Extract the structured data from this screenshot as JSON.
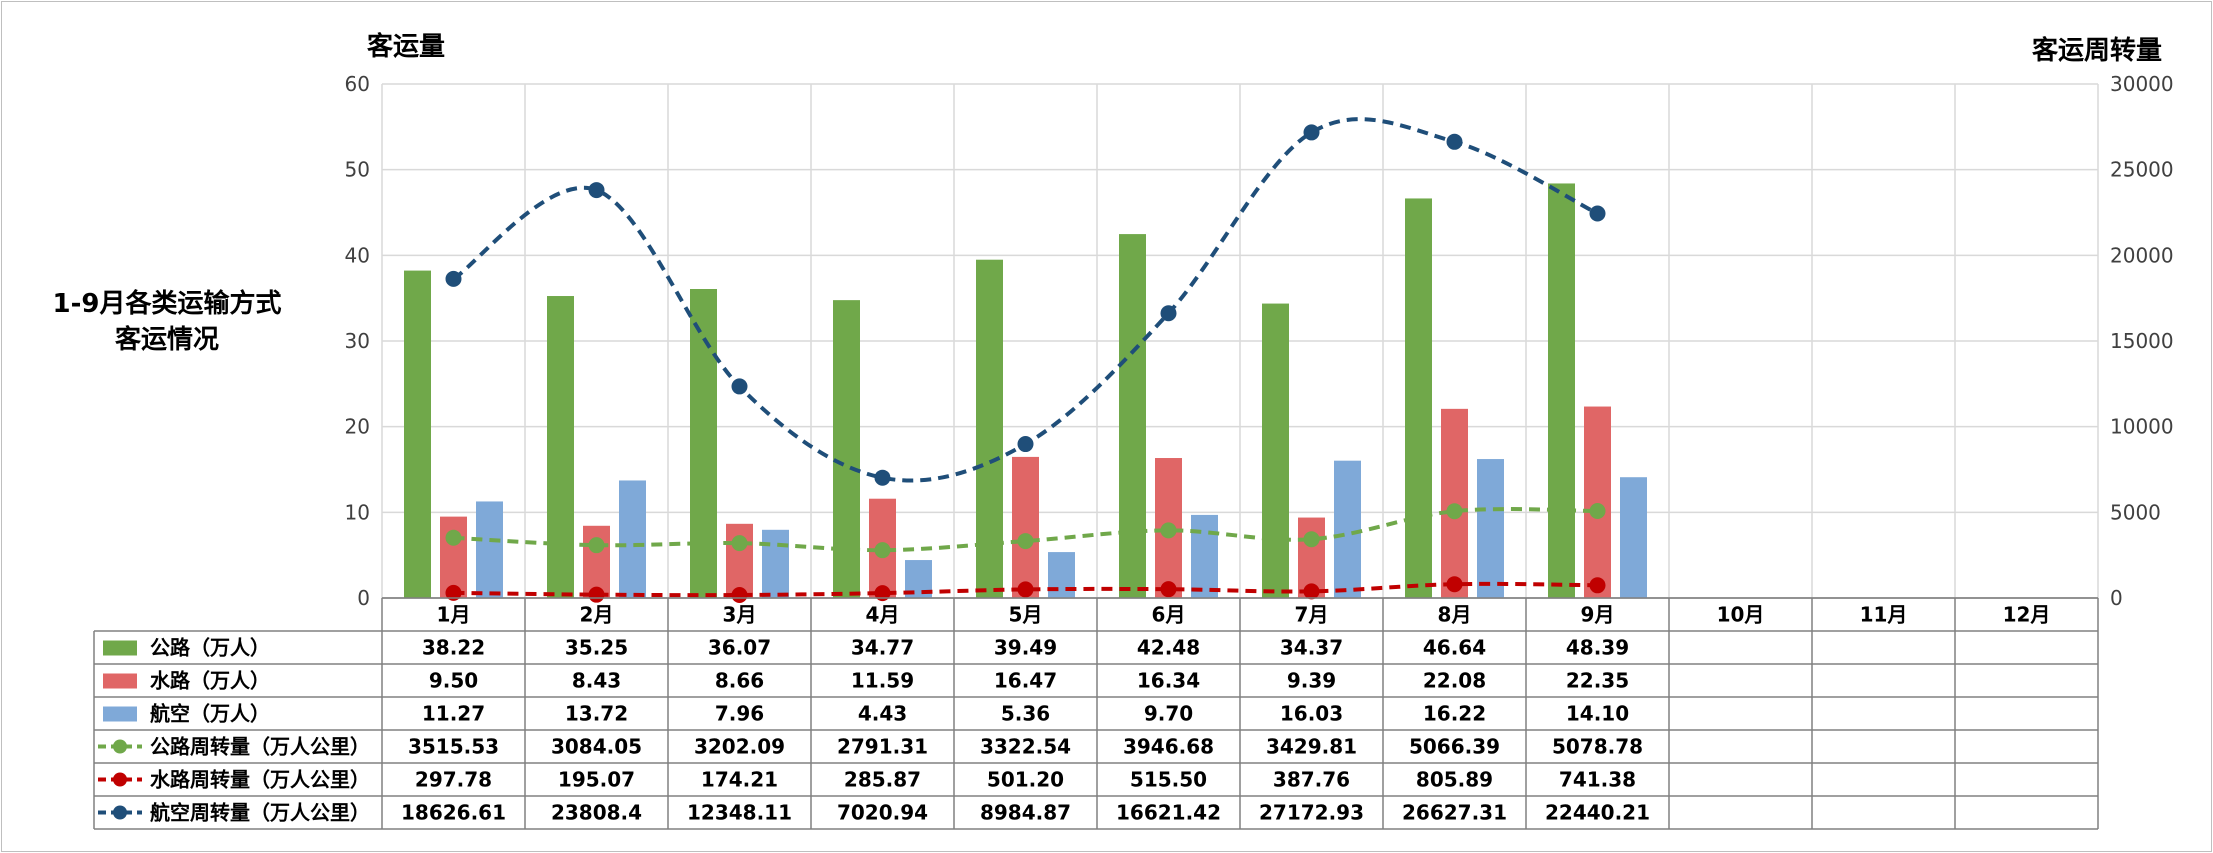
{
  "side_title": [
    "1-9月各类运输方式",
    "客运情况"
  ],
  "chart_data": {
    "type": "bar",
    "title": "",
    "ylabel": "客运量",
    "y2label": "客运周转量",
    "ylim": [
      0,
      60
    ],
    "y2lim": [
      0,
      30000
    ],
    "yticks": [
      0,
      10,
      20,
      30,
      40,
      50,
      60
    ],
    "y2ticks": [
      0,
      5000,
      10000,
      15000,
      20000,
      25000,
      30000
    ],
    "grid": true,
    "legend": "data-table",
    "categories": [
      "1月",
      "2月",
      "3月",
      "4月",
      "5月",
      "6月",
      "7月",
      "8月",
      "9月",
      "10月",
      "11月",
      "12月"
    ],
    "series": [
      {
        "name": "公路（万人）",
        "type": "bar",
        "axis": "left",
        "color": "#70a84a",
        "values": [
          38.22,
          35.25,
          36.07,
          34.77,
          39.49,
          42.48,
          34.37,
          46.64,
          48.39,
          null,
          null,
          null
        ],
        "labels": [
          "38.22",
          "35.25",
          "36.07",
          "34.77",
          "39.49",
          "42.48",
          "34.37",
          "46.64",
          "48.39",
          "",
          "",
          ""
        ]
      },
      {
        "name": "水路（万人）",
        "type": "bar",
        "axis": "left",
        "color": "#e06666",
        "values": [
          9.5,
          8.43,
          8.66,
          11.59,
          16.47,
          16.34,
          9.39,
          22.08,
          22.35,
          null,
          null,
          null
        ],
        "labels": [
          "9.50",
          "8.43",
          "8.66",
          "11.59",
          "16.47",
          "16.34",
          "9.39",
          "22.08",
          "22.35",
          "",
          "",
          ""
        ]
      },
      {
        "name": "航空（万人）",
        "type": "bar",
        "axis": "left",
        "color": "#7fa9d8",
        "values": [
          11.27,
          13.72,
          7.96,
          4.43,
          5.36,
          9.7,
          16.03,
          16.22,
          14.1,
          null,
          null,
          null
        ],
        "labels": [
          "11.27",
          "13.72",
          "7.96",
          "4.43",
          "5.36",
          "9.70",
          "16.03",
          "16.22",
          "14.10",
          "",
          "",
          ""
        ]
      },
      {
        "name": "公路周转量（万人公里）",
        "type": "line",
        "axis": "right",
        "color": "#70a84a",
        "values": [
          3515.53,
          3084.05,
          3202.09,
          2791.31,
          3322.54,
          3946.68,
          3429.81,
          5066.39,
          5078.78,
          null,
          null,
          null
        ],
        "labels": [
          "3515.53",
          "3084.05",
          "3202.09",
          "2791.31",
          "3322.54",
          "3946.68",
          "3429.81",
          "5066.39",
          "5078.78",
          "",
          "",
          ""
        ]
      },
      {
        "name": "水路周转量（万人公里）",
        "type": "line",
        "axis": "right",
        "color": "#c00000",
        "values": [
          297.78,
          195.07,
          174.21,
          285.87,
          501.2,
          515.5,
          387.76,
          805.89,
          741.38,
          null,
          null,
          null
        ],
        "labels": [
          "297.78",
          "195.07",
          "174.21",
          "285.87",
          "501.20",
          "515.50",
          "387.76",
          "805.89",
          "741.38",
          "",
          "",
          ""
        ]
      },
      {
        "name": "航空周转量（万人公里）",
        "type": "line",
        "axis": "right",
        "color": "#1f4e79",
        "values": [
          18626.61,
          23808.4,
          12348.11,
          7020.94,
          8984.87,
          16621.42,
          27172.93,
          26627.31,
          22440.21,
          null,
          null,
          null
        ],
        "labels": [
          "18626.61",
          "23808.4",
          "12348.11",
          "7020.94",
          "8984.87",
          "16621.42",
          "27172.93",
          "26627.31",
          "22440.21",
          "",
          "",
          ""
        ]
      }
    ]
  }
}
